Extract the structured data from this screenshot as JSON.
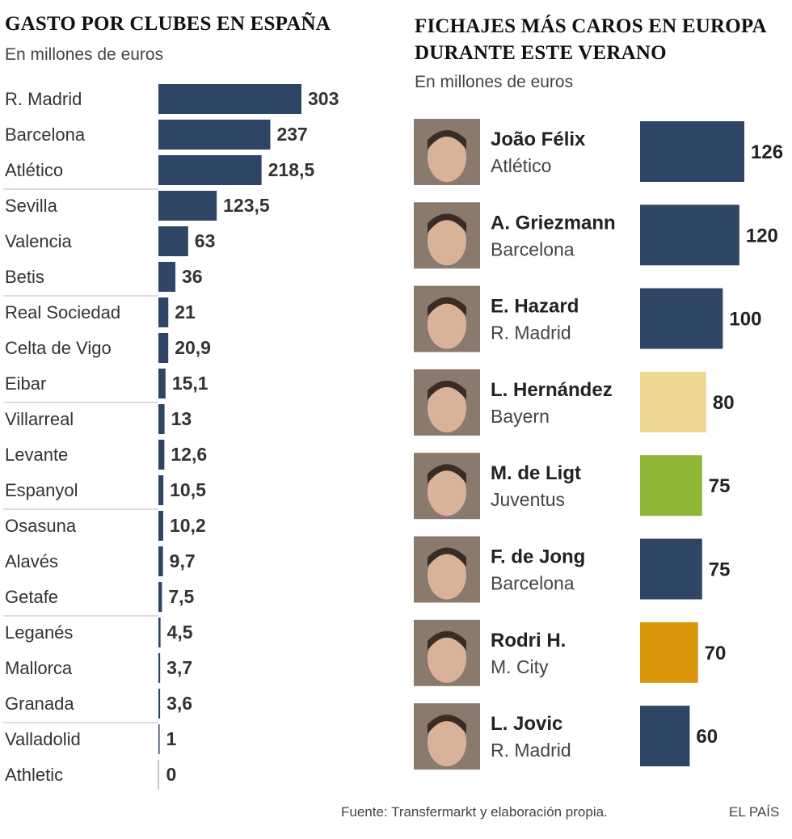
{
  "colors": {
    "navy": "#2e4566",
    "beige": "#eed592",
    "green": "#8fb535",
    "orange": "#d9950a",
    "rule": "#bbbbbb"
  },
  "left": {
    "title": "GASTO POR CLUBES EN ESPAÑA",
    "subtitle": "En millones de euros"
  },
  "right": {
    "title_line1": "FICHAJES MÁS CAROS EN EUROPA",
    "title_line2": "DURANTE ESTE VERANO",
    "subtitle": "En millones de euros"
  },
  "footer": {
    "source": "Fuente: Transfermarkt y elaboración propia.",
    "brand": "EL PAÍS"
  },
  "chart_data": [
    {
      "type": "bar",
      "orientation": "horizontal",
      "title": "GASTO POR CLUBES EN ESPAÑA",
      "subtitle": "En millones de euros",
      "categories": [
        "R. Madrid",
        "Barcelona",
        "Atlético",
        "Sevilla",
        "Valencia",
        "Betis",
        "Real Sociedad",
        "Celta de Vigo",
        "Eibar",
        "Villarreal",
        "Levante",
        "Espanyol",
        "Osasuna",
        "Alavés",
        "Getafe",
        "Leganés",
        "Mallorca",
        "Granada",
        "Valladolid",
        "Athletic"
      ],
      "values": [
        303,
        237,
        218.5,
        123.5,
        63,
        36,
        21,
        20.9,
        15.1,
        13,
        12.6,
        10.5,
        10.2,
        9.7,
        7.5,
        4.5,
        3.7,
        3.6,
        1,
        0
      ],
      "labels": [
        "303",
        "237",
        "218,5",
        "123,5",
        "63",
        "36",
        "21",
        "20,9",
        "15,1",
        "13",
        "12,6",
        "10,5",
        "10,2",
        "9,7",
        "7,5",
        "4,5",
        "3,7",
        "3,6",
        "1",
        "0"
      ],
      "color": "#2e4566",
      "grid": false
    },
    {
      "type": "bar",
      "orientation": "horizontal",
      "title": "FICHAJES MÁS CAROS EN EUROPA DURANTE ESTE VERANO",
      "subtitle": "En millones de euros",
      "categories": [
        "João Félix",
        "A. Griezmann",
        "E. Hazard",
        "L. Hernández",
        "M. de Ligt",
        "F. de Jong",
        "Rodri H.",
        "L. Jovic"
      ],
      "clubs": [
        "Atlético",
        "Barcelona",
        "R. Madrid",
        "Bayern",
        "Juventus",
        "Barcelona",
        "M. City",
        "R. Madrid"
      ],
      "values": [
        126,
        120,
        100,
        80,
        75,
        75,
        70,
        60
      ],
      "labels": [
        "126",
        "120",
        "100",
        "80",
        "75",
        "75",
        "70",
        "60"
      ],
      "colors": [
        "#2e4566",
        "#2e4566",
        "#2e4566",
        "#eed592",
        "#8fb535",
        "#2e4566",
        "#d9950a",
        "#2e4566"
      ],
      "grid": false
    }
  ]
}
